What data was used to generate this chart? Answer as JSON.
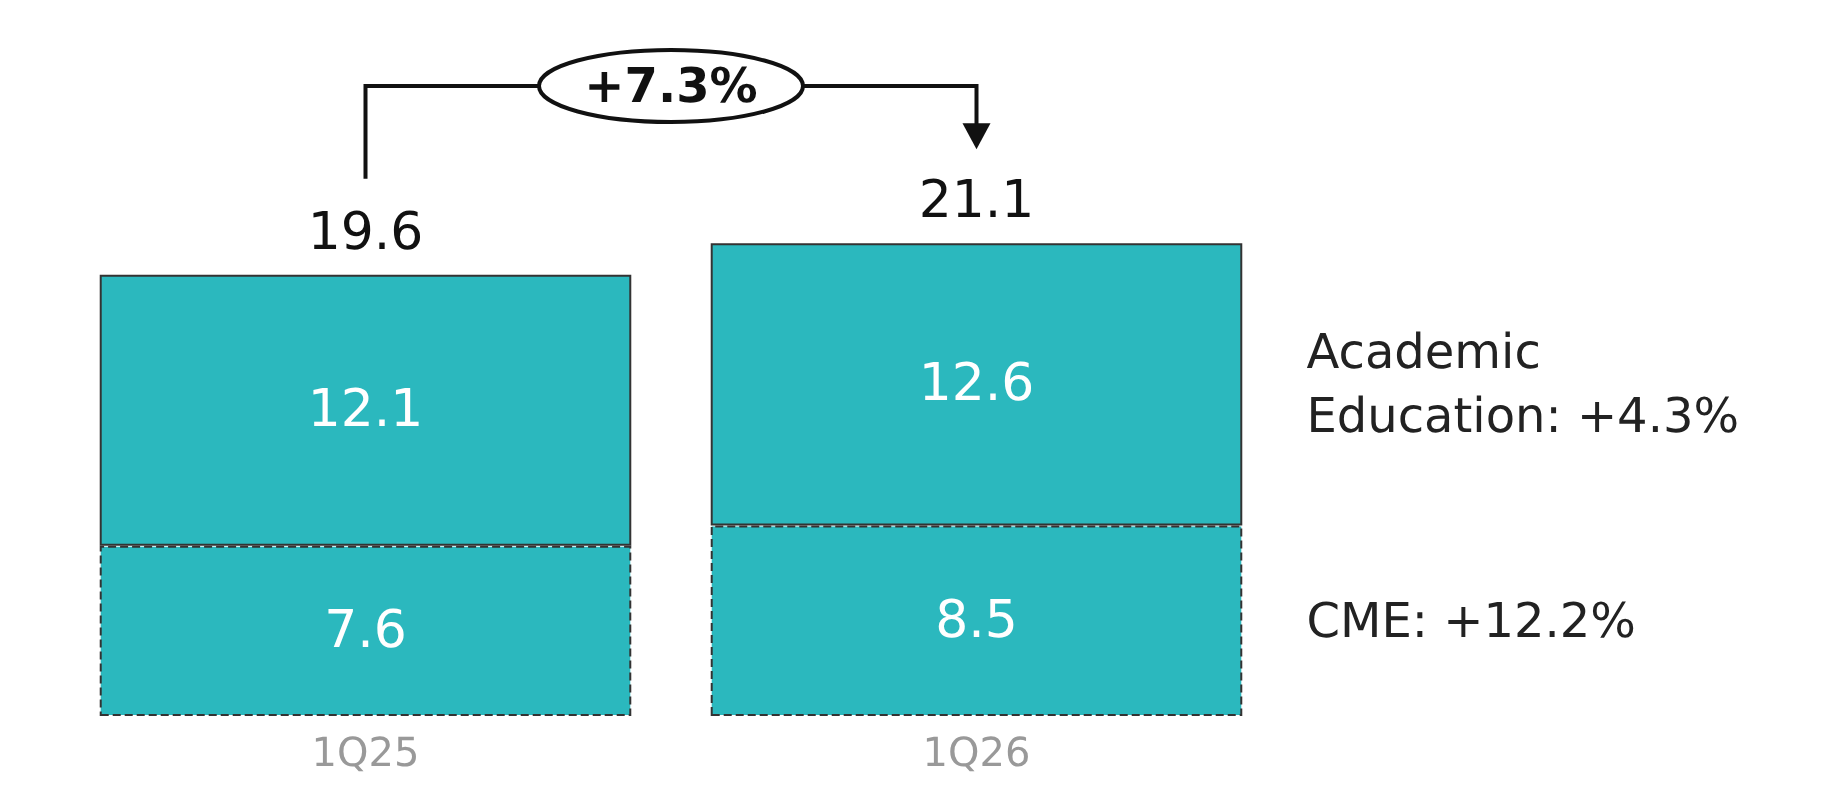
{
  "chart_data": {
    "type": "bar",
    "stacked": true,
    "data_labels": true,
    "categories": [
      "1Q25",
      "1Q26"
    ],
    "series": [
      {
        "name": "CME: +12.2%",
        "color": "#2bb8be",
        "values": [
          7.6,
          8.5
        ],
        "line_style": "dashed"
      },
      {
        "name": "Academic Education: +4.3%",
        "color": "#2bb8be",
        "values": [
          12.1,
          12.6
        ],
        "line_style": "solid"
      }
    ],
    "totals": [
      "19.6",
      "21.1"
    ],
    "annotations": [
      "+7.3%"
    ]
  }
}
